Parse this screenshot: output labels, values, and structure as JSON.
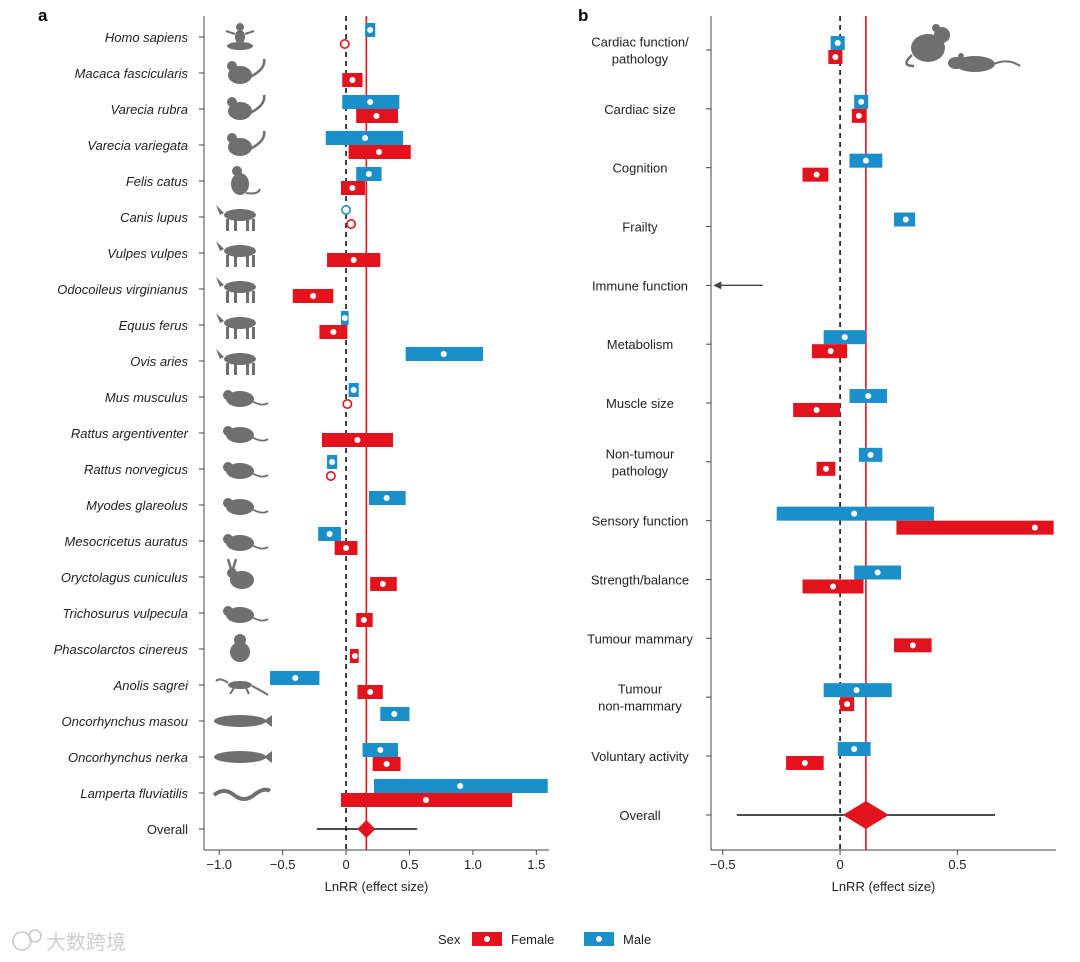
{
  "colors": {
    "female": "#e3131e",
    "male": "#1b8fc9",
    "overall_line": "#e3131e",
    "axis": "#444444",
    "silhouette": "#6f6f6f"
  },
  "legend": {
    "title": "Sex",
    "female_label": "Female",
    "male_label": "Male"
  },
  "watermark": "大数跨境",
  "chart_data": [
    {
      "panel": "a",
      "type": "forest",
      "xlabel": "LnRR (effect size)",
      "xlim": [
        -1.12,
        1.6
      ],
      "xticks": [
        -1.0,
        -0.5,
        0,
        0.5,
        1.0,
        1.5
      ],
      "xtick_labels": [
        "−1.0",
        "−0.5",
        "0",
        "0.5",
        "1.0",
        "1.5"
      ],
      "overall_line_x": 0.16,
      "rows": [
        {
          "label": "Homo sapiens",
          "icon": "human-silhouette-icon",
          "male": {
            "est": 0.19,
            "lo": 0.15,
            "hi": 0.23
          },
          "female": {
            "est": -0.01,
            "lo": null,
            "hi": null
          }
        },
        {
          "label": "Macaca fascicularis",
          "icon": "macaque-silhouette-icon",
          "male": null,
          "female": {
            "est": 0.05,
            "lo": -0.03,
            "hi": 0.13
          }
        },
        {
          "label": "Varecia rubra",
          "icon": "red-ruffed-lemur-silhouette-icon",
          "male": {
            "est": 0.19,
            "lo": -0.03,
            "hi": 0.42
          },
          "female": {
            "est": 0.24,
            "lo": 0.08,
            "hi": 0.41
          }
        },
        {
          "label": "Varecia variegata",
          "icon": "black-white-ruffed-lemur-silhouette-icon",
          "male": {
            "est": 0.15,
            "lo": -0.16,
            "hi": 0.45
          },
          "female": {
            "est": 0.26,
            "lo": 0.02,
            "hi": 0.51
          }
        },
        {
          "label": "Felis catus",
          "icon": "cat-silhouette-icon",
          "male": {
            "est": 0.18,
            "lo": 0.08,
            "hi": 0.28
          },
          "female": {
            "est": 0.05,
            "lo": -0.04,
            "hi": 0.15
          }
        },
        {
          "label": "Canis lupus",
          "icon": "wolf-silhouette-icon",
          "male": {
            "est": 0.0,
            "lo": null,
            "hi": null
          },
          "female": {
            "est": 0.04,
            "lo": null,
            "hi": null
          }
        },
        {
          "label": "Vulpes vulpes",
          "icon": "fox-silhouette-icon",
          "male": null,
          "female": {
            "est": 0.06,
            "lo": -0.15,
            "hi": 0.27
          }
        },
        {
          "label": "Odocoileus virginianus",
          "icon": "deer-silhouette-icon",
          "male": null,
          "female": {
            "est": -0.26,
            "lo": -0.42,
            "hi": -0.1
          }
        },
        {
          "label": "Equus ferus",
          "icon": "horse-silhouette-icon",
          "male": {
            "est": -0.01,
            "lo": -0.04,
            "hi": 0.02
          },
          "female": {
            "est": -0.1,
            "lo": -0.21,
            "hi": 0.01
          }
        },
        {
          "label": "Ovis aries",
          "icon": "sheep-silhouette-icon",
          "male": {
            "est": 0.77,
            "lo": 0.47,
            "hi": 1.08
          },
          "female": null
        },
        {
          "label": "Mus musculus",
          "icon": "mouse-silhouette-icon",
          "male": {
            "est": 0.06,
            "lo": 0.02,
            "hi": 0.1
          },
          "female": {
            "est": 0.01,
            "lo": null,
            "hi": null
          }
        },
        {
          "label": "Rattus argentiventer",
          "icon": "ricefield-rat-silhouette-icon",
          "male": null,
          "female": {
            "est": 0.09,
            "lo": -0.19,
            "hi": 0.37
          }
        },
        {
          "label": "Rattus norvegicus",
          "icon": "brown-rat-silhouette-icon",
          "male": {
            "est": -0.11,
            "lo": -0.15,
            "hi": -0.07
          },
          "female": {
            "est": -0.12,
            "lo": null,
            "hi": null
          }
        },
        {
          "label": "Myodes glareolus",
          "icon": "bank-vole-silhouette-icon",
          "male": {
            "est": 0.32,
            "lo": 0.18,
            "hi": 0.47
          },
          "female": null
        },
        {
          "label": "Mesocricetus auratus",
          "icon": "hamster-silhouette-icon",
          "male": {
            "est": -0.13,
            "lo": -0.22,
            "hi": -0.04
          },
          "female": {
            "est": 0.0,
            "lo": -0.09,
            "hi": 0.09
          }
        },
        {
          "label": "Oryctolagus cuniculus",
          "icon": "rabbit-silhouette-icon",
          "male": null,
          "female": {
            "est": 0.29,
            "lo": 0.19,
            "hi": 0.4
          }
        },
        {
          "label": "Trichosurus vulpecula",
          "icon": "possum-silhouette-icon",
          "male": null,
          "female": {
            "est": 0.14,
            "lo": 0.08,
            "hi": 0.21
          }
        },
        {
          "label": "Phascolarctos cinereus",
          "icon": "koala-silhouette-icon",
          "male": null,
          "female": {
            "est": 0.07,
            "lo": 0.03,
            "hi": 0.1
          }
        },
        {
          "label": "Anolis sagrei",
          "icon": "anole-lizard-silhouette-icon",
          "male": {
            "est": -0.4,
            "lo": -0.6,
            "hi": -0.21
          },
          "female": {
            "est": 0.19,
            "lo": 0.09,
            "hi": 0.29
          }
        },
        {
          "label": "Oncorhynchus masou",
          "icon": "masu-salmon-silhouette-icon",
          "male": {
            "est": 0.38,
            "lo": 0.27,
            "hi": 0.5
          },
          "female": null
        },
        {
          "label": "Oncorhynchus nerka",
          "icon": "sockeye-salmon-silhouette-icon",
          "male": {
            "est": 0.27,
            "lo": 0.13,
            "hi": 0.41
          },
          "female": {
            "est": 0.32,
            "lo": 0.21,
            "hi": 0.43
          }
        },
        {
          "label": "Lamperta fluviatilis",
          "icon": "lamprey-silhouette-icon",
          "male": {
            "est": 0.9,
            "lo": 0.22,
            "hi": 1.59
          },
          "female": {
            "est": 0.63,
            "lo": -0.04,
            "hi": 1.31
          }
        }
      ],
      "overall": {
        "label": "Overall",
        "est": 0.16,
        "lo": -0.23,
        "hi": 0.56
      }
    },
    {
      "panel": "b",
      "type": "forest",
      "xlabel": "LnRR (effect size)",
      "xlim": [
        -0.55,
        0.92
      ],
      "xticks": [
        -0.5,
        0,
        0.5
      ],
      "xtick_labels": [
        "−0.5",
        "0",
        "0.5"
      ],
      "overall_line_x": 0.11,
      "header_icon": "mouse-and-rat-silhouette-icon",
      "rows": [
        {
          "label": [
            "Cardiac function/",
            "pathology"
          ],
          "male": {
            "est": -0.01,
            "lo": -0.04,
            "hi": 0.02
          },
          "female": {
            "est": -0.02,
            "lo": -0.05,
            "hi": 0.01
          }
        },
        {
          "label": [
            "Cardiac size"
          ],
          "male": {
            "est": 0.09,
            "lo": 0.06,
            "hi": 0.12
          },
          "female": {
            "est": 0.08,
            "lo": 0.05,
            "hi": 0.11
          }
        },
        {
          "label": [
            "Cognition"
          ],
          "male": {
            "est": 0.11,
            "lo": 0.04,
            "hi": 0.18
          },
          "female": {
            "est": -0.1,
            "lo": -0.16,
            "hi": -0.05
          }
        },
        {
          "label": [
            "Frailty"
          ],
          "male": {
            "est": 0.28,
            "lo": 0.23,
            "hi": 0.32
          },
          "female": null
        },
        {
          "label": [
            "Immune function"
          ],
          "arrow_from": -0.33,
          "arrow_to": -0.54,
          "male": null,
          "female": null
        },
        {
          "label": [
            "Metabolism"
          ],
          "male": {
            "est": 0.02,
            "lo": -0.07,
            "hi": 0.11
          },
          "female": {
            "est": -0.04,
            "lo": -0.12,
            "hi": 0.03
          }
        },
        {
          "label": [
            "Muscle size"
          ],
          "male": {
            "est": 0.12,
            "lo": 0.04,
            "hi": 0.2
          },
          "female": {
            "est": -0.1,
            "lo": -0.2,
            "hi": 0.0
          }
        },
        {
          "label": [
            "Non-tumour",
            "pathology"
          ],
          "male": {
            "est": 0.13,
            "lo": 0.08,
            "hi": 0.18
          },
          "female": {
            "est": -0.06,
            "lo": -0.1,
            "hi": -0.02
          }
        },
        {
          "label": [
            "Sensory function"
          ],
          "male": {
            "est": 0.06,
            "lo": -0.27,
            "hi": 0.4
          },
          "female": {
            "est": 0.83,
            "lo": 0.24,
            "hi": 0.91
          }
        },
        {
          "label": [
            "Strength/balance"
          ],
          "male": {
            "est": 0.16,
            "lo": 0.06,
            "hi": 0.26
          },
          "female": {
            "est": -0.03,
            "lo": -0.16,
            "hi": 0.1
          }
        },
        {
          "label": [
            "Tumour mammary"
          ],
          "male": null,
          "female": {
            "est": 0.31,
            "lo": 0.23,
            "hi": 0.39
          }
        },
        {
          "label": [
            "Tumour",
            "non-mammary"
          ],
          "male": {
            "est": 0.07,
            "lo": -0.07,
            "hi": 0.22
          },
          "female": {
            "est": 0.03,
            "lo": 0.0,
            "hi": 0.06
          }
        },
        {
          "label": [
            "Voluntary activity"
          ],
          "male": {
            "est": 0.06,
            "lo": -0.01,
            "hi": 0.13
          },
          "female": {
            "est": -0.15,
            "lo": -0.23,
            "hi": -0.07
          }
        }
      ],
      "overall": {
        "label": "Overall",
        "est": 0.11,
        "lo": -0.44,
        "hi": 0.66
      }
    }
  ]
}
